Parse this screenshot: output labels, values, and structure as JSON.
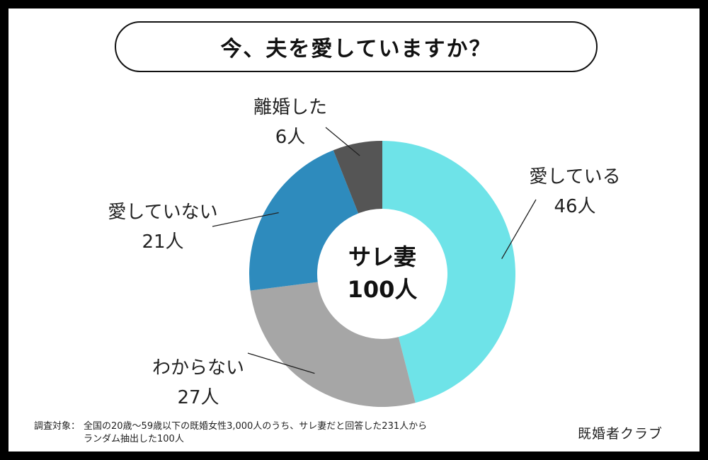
{
  "title": "今、夫を愛していますか？",
  "chart_data": {
    "type": "donut",
    "title": "今、夫を愛していますか？",
    "center_label": [
      "サレ妻",
      "100人"
    ],
    "total": 100,
    "unit": "人",
    "slices": [
      {
        "label": "愛している",
        "value": 46,
        "value_label": "46人",
        "color": "#6ee3e8"
      },
      {
        "label": "わからない",
        "value": 27,
        "value_label": "27人",
        "color": "#a6a6a6"
      },
      {
        "label": "愛していない",
        "value": 21,
        "value_label": "21人",
        "color": "#2e8bbd"
      },
      {
        "label": "離婚した",
        "value": 6,
        "value_label": "6人",
        "color": "#555555"
      }
    ]
  },
  "footnote": {
    "head": "調査対象：",
    "line1": "全国の20歳〜59歳以下の既婚女性3,000人のうち、サレ妻だと回答した231人から",
    "line2": "ランダム抽出した100人"
  },
  "brand": "既婚者クラブ",
  "background_color": "#000000"
}
